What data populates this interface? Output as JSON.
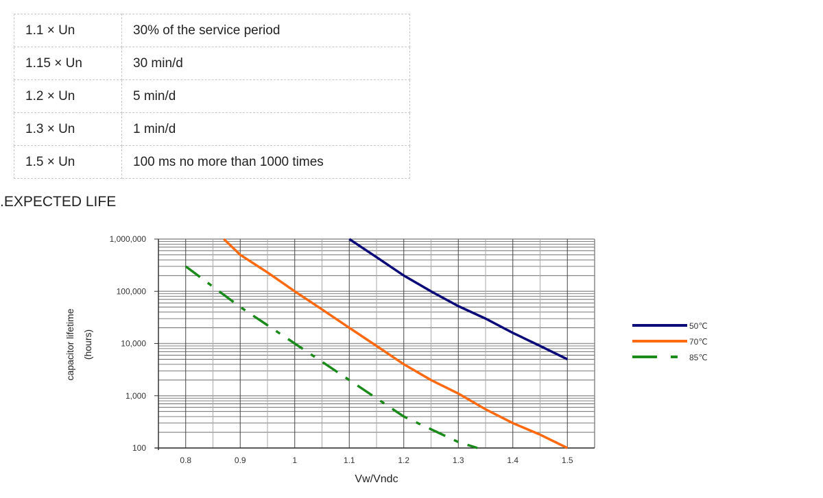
{
  "table": {
    "rows": [
      [
        "1.1 × Un",
        "30% of the service period"
      ],
      [
        "1.15 × Un",
        "30 min/d"
      ],
      [
        "1.2 × Un",
        "5 min/d"
      ],
      [
        "1.3 × Un",
        "1 min/d"
      ],
      [
        "1.5 × Un",
        "100 ms no more than 1000 times"
      ]
    ]
  },
  "heading": ".EXPECTED LIFE",
  "chart_data": {
    "type": "line",
    "title": "",
    "xlabel": "Vw/Vndc",
    "ylabel": "capacitor lifetime",
    "ylabel2": "(hours)",
    "xlim": [
      0.75,
      1.55
    ],
    "ylim": [
      100,
      1000000
    ],
    "yscale": "log",
    "grid": true,
    "legend_position": "right",
    "xticks": [
      "0.8",
      "0.9",
      "1",
      "1.1",
      "1.2",
      "1.3",
      "1.4",
      "1.5"
    ],
    "yticks": [
      "100",
      "1,000",
      "10,000",
      "100,000",
      "1,000,000"
    ],
    "series": [
      {
        "name": "50℃",
        "color": "#0a0a78",
        "dash": false,
        "points": [
          [
            1.1,
            1000000
          ],
          [
            1.15,
            450000
          ],
          [
            1.2,
            200000
          ],
          [
            1.25,
            100000
          ],
          [
            1.3,
            52000
          ],
          [
            1.35,
            30000
          ],
          [
            1.4,
            16000
          ],
          [
            1.45,
            9000
          ],
          [
            1.5,
            5000
          ]
        ]
      },
      {
        "name": "70℃",
        "color": "#ff6a10",
        "dash": false,
        "points": [
          [
            0.87,
            1000000
          ],
          [
            0.9,
            500000
          ],
          [
            0.95,
            230000
          ],
          [
            1.0,
            100000
          ],
          [
            1.05,
            45000
          ],
          [
            1.1,
            20000
          ],
          [
            1.15,
            9000
          ],
          [
            1.2,
            4000
          ],
          [
            1.25,
            2000
          ],
          [
            1.3,
            1100
          ],
          [
            1.35,
            550
          ],
          [
            1.4,
            300
          ],
          [
            1.45,
            180
          ],
          [
            1.5,
            100
          ]
        ]
      },
      {
        "name": "85℃",
        "color": "#1a8a1a",
        "dash": true,
        "points": [
          [
            0.8,
            300000
          ],
          [
            0.9,
            50000
          ],
          [
            1.0,
            10000
          ],
          [
            1.1,
            2000
          ],
          [
            1.2,
            400
          ],
          [
            1.3,
            130
          ],
          [
            1.335,
            100
          ]
        ]
      }
    ]
  }
}
